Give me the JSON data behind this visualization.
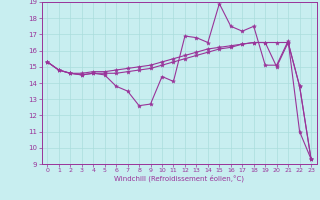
{
  "xlabel": "Windchill (Refroidissement éolien,°C)",
  "xlim": [
    -0.5,
    23.5
  ],
  "ylim": [
    9,
    19
  ],
  "xticks": [
    0,
    1,
    2,
    3,
    4,
    5,
    6,
    7,
    8,
    9,
    10,
    11,
    12,
    13,
    14,
    15,
    16,
    17,
    18,
    19,
    20,
    21,
    22,
    23
  ],
  "yticks": [
    9,
    10,
    11,
    12,
    13,
    14,
    15,
    16,
    17,
    18,
    19
  ],
  "bg_color": "#c8eef0",
  "line_color": "#993399",
  "grid_color": "#aadddd",
  "lines": [
    {
      "x": [
        0,
        1,
        2,
        3,
        4,
        5,
        6,
        7,
        8,
        9,
        10,
        11,
        12,
        13,
        14,
        15,
        16,
        17,
        18,
        19,
        20,
        21,
        22,
        23
      ],
      "y": [
        15.3,
        14.8,
        14.6,
        14.6,
        14.7,
        14.7,
        14.8,
        14.9,
        15.0,
        15.1,
        15.3,
        15.5,
        15.7,
        15.9,
        16.1,
        16.2,
        16.3,
        16.4,
        16.5,
        16.5,
        16.5,
        16.5,
        13.8,
        9.3
      ]
    },
    {
      "x": [
        0,
        1,
        2,
        3,
        4,
        5,
        6,
        7,
        8,
        9,
        10,
        11,
        12,
        13,
        14,
        15,
        16,
        17,
        18,
        19,
        20,
        21,
        22,
        23
      ],
      "y": [
        15.3,
        14.8,
        14.6,
        14.5,
        14.6,
        14.5,
        13.8,
        13.5,
        12.6,
        12.7,
        14.4,
        14.1,
        16.9,
        16.8,
        16.5,
        18.9,
        17.5,
        17.2,
        17.5,
        15.1,
        15.1,
        16.6,
        11.0,
        9.3
      ]
    },
    {
      "x": [
        0,
        1,
        2,
        3,
        4,
        5,
        6,
        7,
        8,
        9,
        10,
        11,
        12,
        13,
        14,
        15,
        16,
        17,
        18,
        19,
        20,
        21,
        22,
        23
      ],
      "y": [
        15.3,
        14.8,
        14.6,
        14.5,
        14.6,
        14.6,
        14.6,
        14.7,
        14.8,
        14.9,
        15.1,
        15.3,
        15.5,
        15.7,
        15.9,
        16.1,
        16.2,
        16.4,
        16.5,
        16.5,
        15.0,
        16.5,
        13.8,
        9.3
      ]
    }
  ]
}
